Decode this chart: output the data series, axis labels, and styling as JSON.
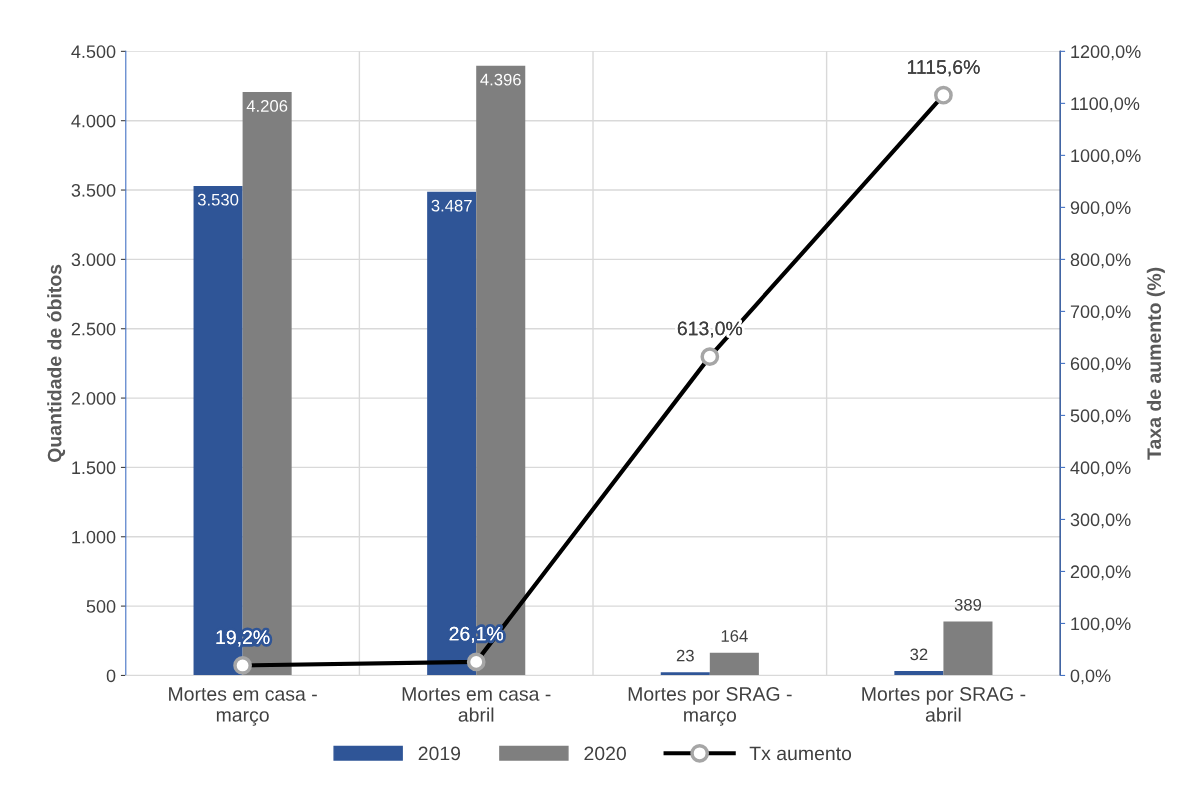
{
  "chart_data": {
    "type": "bar",
    "categories": [
      "Mortes em casa -\nmarço",
      "Mortes em casa -\nabril",
      "Mortes por SRAG -\nmarço",
      "Mortes por SRAG -\nabril"
    ],
    "ylabel": "Quantidade de óbitos",
    "y2label": "Taxa de aumento (%)",
    "series": [
      {
        "name": "2019",
        "color": "#2f5597",
        "values": [
          3530,
          3487,
          23,
          32
        ],
        "value_labels": [
          "3.530",
          "3.487",
          "23",
          "32"
        ]
      },
      {
        "name": "2020",
        "color": "#7f7f7f",
        "values": [
          4206,
          4396,
          164,
          389
        ],
        "value_labels": [
          "4.206",
          "4.396",
          "164",
          "389"
        ]
      },
      {
        "name": "Tx aumento",
        "type": "line",
        "axis": "y2",
        "color": "#000000",
        "marker": "circle",
        "values": [
          19.2,
          26.1,
          613.0,
          1115.6
        ],
        "value_labels": [
          "19,2%",
          "26,1%",
          "613,0%",
          "1115,6%"
        ]
      }
    ],
    "ylim": [
      0,
      4500
    ],
    "yticks": [
      0,
      {
        "value": 500,
        "label": "500"
      },
      {
        "value": 1000,
        "label": "1.000"
      },
      {
        "value": 1500,
        "label": "1.500"
      },
      {
        "value": 2000,
        "label": "2.000"
      },
      {
        "value": 2500,
        "label": "2.500"
      },
      {
        "value": 3000,
        "label": "3.000"
      },
      {
        "value": 3500,
        "label": "3.500"
      },
      {
        "value": 4000,
        "label": "4.000"
      },
      {
        "value": 4500,
        "label": "4.500"
      }
    ],
    "y2lim": [
      0,
      1200
    ],
    "y2ticks": [
      {
        "value": 0,
        "label": "0,0%"
      },
      {
        "value": 100,
        "label": "100,0%"
      },
      {
        "value": 200,
        "label": "200,0%"
      },
      {
        "value": 300,
        "label": "300,0%"
      },
      {
        "value": 400,
        "label": "400,0%"
      },
      {
        "value": 500,
        "label": "500,0%"
      },
      {
        "value": 600,
        "label": "600,0%"
      },
      {
        "value": 700,
        "label": "700,0%"
      },
      {
        "value": 800,
        "label": "800,0%"
      },
      {
        "value": 900,
        "label": "900,0%"
      },
      {
        "value": 1000,
        "label": "1000,0%"
      },
      {
        "value": 1100,
        "label": "1100,0%"
      },
      {
        "value": 1200,
        "label": "1200,0%"
      }
    ],
    "grid": true,
    "legend": "bottom"
  }
}
